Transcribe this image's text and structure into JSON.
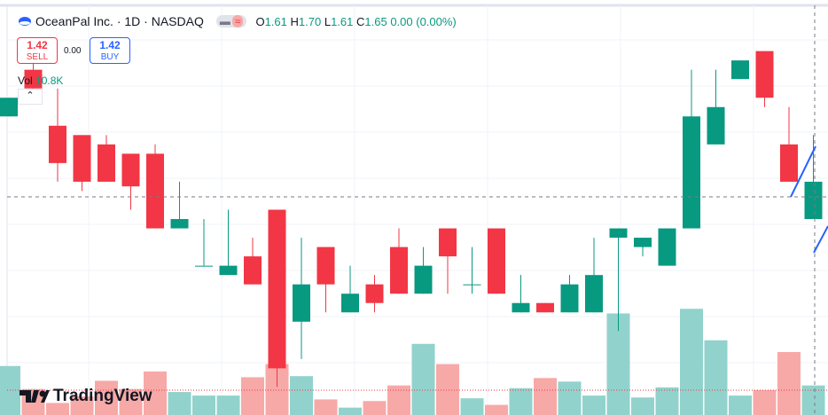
{
  "header": {
    "title": "OceanPal Inc. · 1D · NASDAQ",
    "open_label": "O",
    "open": "1.61",
    "high_label": "H",
    "high": "1.70",
    "low_label": "L",
    "low": "1.61",
    "close_label": "C",
    "close": "1.65",
    "change": "0.00 (0.00%)"
  },
  "trade": {
    "sell_price": "1.42",
    "sell_label": "SELL",
    "spread": "0.00",
    "buy_price": "1.42",
    "buy_label": "BUY"
  },
  "volume_legend": {
    "label": "Vol",
    "value": "10.8K"
  },
  "logo": "TradingView",
  "chart_data": {
    "type": "candlestick",
    "open": [
      1.72,
      1.77,
      1.71,
      1.7,
      1.69,
      1.68,
      1.68,
      1.6,
      1.56,
      1.55,
      1.57,
      1.62,
      1.5,
      1.58,
      1.51,
      1.54,
      1.58,
      1.53,
      1.6,
      1.54,
      1.6,
      1.51,
      1.52,
      1.51,
      1.51,
      1.59,
      1.58,
      1.56,
      1.6,
      1.69,
      1.76,
      1.79,
      1.69,
      1.61
    ],
    "high": [
      1.74,
      1.78,
      1.75,
      1.7,
      1.7,
      1.68,
      1.69,
      1.65,
      1.61,
      1.62,
      1.59,
      1.62,
      1.59,
      1.58,
      1.56,
      1.55,
      1.6,
      1.58,
      1.6,
      1.58,
      1.6,
      1.55,
      1.52,
      1.55,
      1.59,
      1.6,
      1.59,
      1.6,
      1.77,
      1.77,
      1.78,
      1.79,
      1.73,
      1.7
    ],
    "low": [
      1.72,
      1.74,
      1.65,
      1.64,
      1.65,
      1.62,
      1.6,
      1.6,
      1.56,
      1.55,
      1.54,
      1.43,
      1.46,
      1.51,
      1.51,
      1.51,
      1.53,
      1.53,
      1.53,
      1.53,
      1.53,
      1.51,
      1.51,
      1.51,
      1.51,
      1.49,
      1.57,
      1.56,
      1.6,
      1.69,
      1.76,
      1.73,
      1.65,
      1.61
    ],
    "close": [
      1.74,
      1.75,
      1.67,
      1.65,
      1.65,
      1.645,
      1.6,
      1.61,
      1.56,
      1.56,
      1.54,
      1.45,
      1.54,
      1.54,
      1.53,
      1.52,
      1.53,
      1.56,
      1.57,
      1.54,
      1.53,
      1.52,
      1.51,
      1.54,
      1.55,
      1.6,
      1.59,
      1.6,
      1.72,
      1.73,
      1.78,
      1.74,
      1.65,
      1.65
    ],
    "volume": [
      17900,
      9500,
      4400,
      6800,
      12500,
      9500,
      15900,
      8400,
      7100,
      7100,
      13800,
      18600,
      14200,
      5700,
      2700,
      5100,
      10800,
      26000,
      18600,
      6100,
      3700,
      9800,
      13500,
      12200,
      7100,
      37100,
      6400,
      10100,
      38800,
      27300,
      7100,
      9100,
      23000,
      10800
    ],
    "ylim": [
      1.4,
      1.84
    ],
    "y2lim": [
      0,
      150000
    ],
    "up_color": "#089981",
    "down_color": "#f23645",
    "volume_up_color": "#92d2cc",
    "volume_down_color": "#f7a9a7"
  }
}
